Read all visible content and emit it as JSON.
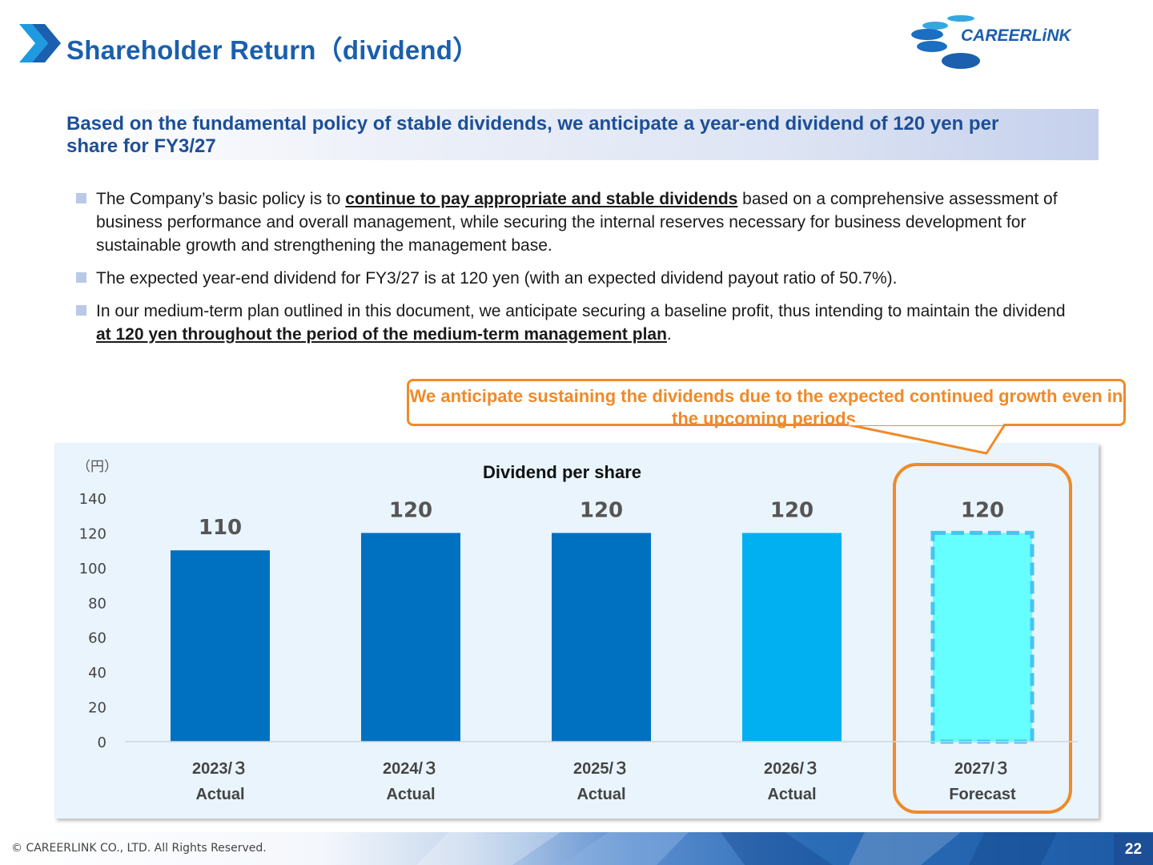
{
  "header": {
    "title": "Shareholder Return（dividend）",
    "logo_text": "CAREERLiNK",
    "brand_color": "#1b5fae"
  },
  "banner": {
    "text": "Based on the fundamental policy of stable dividends, we anticipate a year-end dividend of 120 yen per share for FY3/27"
  },
  "bullets": [
    {
      "pre": "The Company’s basic policy is to ",
      "emph": "continue to pay appropriate and stable dividends",
      "post": " based on a comprehensive assessment of business performance and overall management, while securing the internal reserves necessary for business development for sustainable growth and strengthening the management base."
    },
    {
      "pre": "The expected year-end dividend for FY3/27 is at 120 yen (with an expected dividend payout ratio of 50.7%).",
      "emph": "",
      "post": ""
    },
    {
      "pre": "In our medium-term plan outlined in this document, we anticipate securing a baseline profit, thus intending to maintain the dividend ",
      "emph": "at 120 yen throughout the period of the medium-term management plan",
      "post": "."
    }
  ],
  "callout": {
    "text": "We anticipate sustaining the dividends due to the expected continued growth even in the upcoming periods.",
    "color": "#ef8a2a"
  },
  "chart_data": {
    "type": "bar",
    "title": "Dividend per share",
    "unit_label": "（円）",
    "categories": [
      {
        "year": "2023/３",
        "status": "Actual"
      },
      {
        "year": "2024/３",
        "status": "Actual"
      },
      {
        "year": "2025/３",
        "status": "Actual"
      },
      {
        "year": "2026/３",
        "status": "Actual"
      },
      {
        "year": "2027/３",
        "status": "Forecast"
      }
    ],
    "values": [
      110,
      120,
      120,
      120,
      120
    ],
    "data_labels": [
      "110",
      "120",
      "120",
      "120",
      "120"
    ],
    "bar_colors": [
      "#0070c0",
      "#0070c0",
      "#0070c0",
      "#00b0f0",
      "#66ffff"
    ],
    "forecast_border_color": "#45c4f0",
    "highlight_color": "#ef8a2a",
    "ylim": [
      0,
      140
    ],
    "yticks": [
      0,
      20,
      40,
      60,
      80,
      100,
      120,
      140
    ],
    "grid": false,
    "legend": "none"
  },
  "footer": {
    "copyright": "© CAREERLINK CO., LTD. All Rights Reserved.",
    "page_number": "22"
  }
}
